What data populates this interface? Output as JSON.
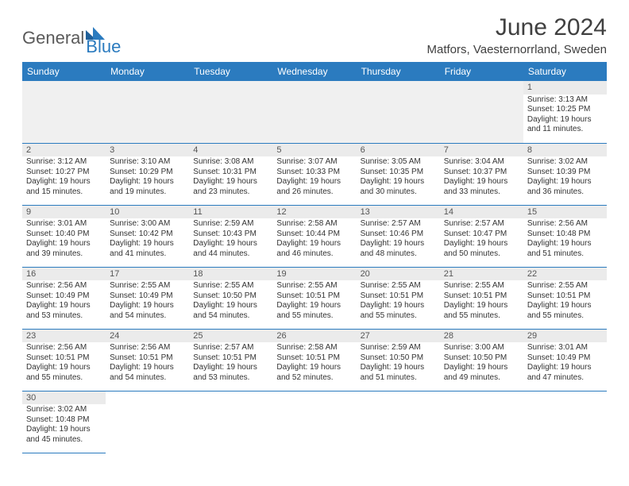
{
  "brand": {
    "part1": "General",
    "part2": "Blue"
  },
  "title": "June 2024",
  "location": "Matfors, Vaesternorrland, Sweden",
  "header_bg": "#2b7bbf",
  "header_text_color": "#ffffff",
  "divider_color": "#2b7bbf",
  "daynum_bg": "#ebebeb",
  "weekdays": [
    "Sunday",
    "Monday",
    "Tuesday",
    "Wednesday",
    "Thursday",
    "Friday",
    "Saturday"
  ],
  "weeks": [
    [
      null,
      null,
      null,
      null,
      null,
      null,
      {
        "n": "1",
        "sr": "Sunrise: 3:13 AM",
        "ss": "Sunset: 10:25 PM",
        "d1": "Daylight: 19 hours",
        "d2": "and 11 minutes."
      }
    ],
    [
      {
        "n": "2",
        "sr": "Sunrise: 3:12 AM",
        "ss": "Sunset: 10:27 PM",
        "d1": "Daylight: 19 hours",
        "d2": "and 15 minutes."
      },
      {
        "n": "3",
        "sr": "Sunrise: 3:10 AM",
        "ss": "Sunset: 10:29 PM",
        "d1": "Daylight: 19 hours",
        "d2": "and 19 minutes."
      },
      {
        "n": "4",
        "sr": "Sunrise: 3:08 AM",
        "ss": "Sunset: 10:31 PM",
        "d1": "Daylight: 19 hours",
        "d2": "and 23 minutes."
      },
      {
        "n": "5",
        "sr": "Sunrise: 3:07 AM",
        "ss": "Sunset: 10:33 PM",
        "d1": "Daylight: 19 hours",
        "d2": "and 26 minutes."
      },
      {
        "n": "6",
        "sr": "Sunrise: 3:05 AM",
        "ss": "Sunset: 10:35 PM",
        "d1": "Daylight: 19 hours",
        "d2": "and 30 minutes."
      },
      {
        "n": "7",
        "sr": "Sunrise: 3:04 AM",
        "ss": "Sunset: 10:37 PM",
        "d1": "Daylight: 19 hours",
        "d2": "and 33 minutes."
      },
      {
        "n": "8",
        "sr": "Sunrise: 3:02 AM",
        "ss": "Sunset: 10:39 PM",
        "d1": "Daylight: 19 hours",
        "d2": "and 36 minutes."
      }
    ],
    [
      {
        "n": "9",
        "sr": "Sunrise: 3:01 AM",
        "ss": "Sunset: 10:40 PM",
        "d1": "Daylight: 19 hours",
        "d2": "and 39 minutes."
      },
      {
        "n": "10",
        "sr": "Sunrise: 3:00 AM",
        "ss": "Sunset: 10:42 PM",
        "d1": "Daylight: 19 hours",
        "d2": "and 41 minutes."
      },
      {
        "n": "11",
        "sr": "Sunrise: 2:59 AM",
        "ss": "Sunset: 10:43 PM",
        "d1": "Daylight: 19 hours",
        "d2": "and 44 minutes."
      },
      {
        "n": "12",
        "sr": "Sunrise: 2:58 AM",
        "ss": "Sunset: 10:44 PM",
        "d1": "Daylight: 19 hours",
        "d2": "and 46 minutes."
      },
      {
        "n": "13",
        "sr": "Sunrise: 2:57 AM",
        "ss": "Sunset: 10:46 PM",
        "d1": "Daylight: 19 hours",
        "d2": "and 48 minutes."
      },
      {
        "n": "14",
        "sr": "Sunrise: 2:57 AM",
        "ss": "Sunset: 10:47 PM",
        "d1": "Daylight: 19 hours",
        "d2": "and 50 minutes."
      },
      {
        "n": "15",
        "sr": "Sunrise: 2:56 AM",
        "ss": "Sunset: 10:48 PM",
        "d1": "Daylight: 19 hours",
        "d2": "and 51 minutes."
      }
    ],
    [
      {
        "n": "16",
        "sr": "Sunrise: 2:56 AM",
        "ss": "Sunset: 10:49 PM",
        "d1": "Daylight: 19 hours",
        "d2": "and 53 minutes."
      },
      {
        "n": "17",
        "sr": "Sunrise: 2:55 AM",
        "ss": "Sunset: 10:49 PM",
        "d1": "Daylight: 19 hours",
        "d2": "and 54 minutes."
      },
      {
        "n": "18",
        "sr": "Sunrise: 2:55 AM",
        "ss": "Sunset: 10:50 PM",
        "d1": "Daylight: 19 hours",
        "d2": "and 54 minutes."
      },
      {
        "n": "19",
        "sr": "Sunrise: 2:55 AM",
        "ss": "Sunset: 10:51 PM",
        "d1": "Daylight: 19 hours",
        "d2": "and 55 minutes."
      },
      {
        "n": "20",
        "sr": "Sunrise: 2:55 AM",
        "ss": "Sunset: 10:51 PM",
        "d1": "Daylight: 19 hours",
        "d2": "and 55 minutes."
      },
      {
        "n": "21",
        "sr": "Sunrise: 2:55 AM",
        "ss": "Sunset: 10:51 PM",
        "d1": "Daylight: 19 hours",
        "d2": "and 55 minutes."
      },
      {
        "n": "22",
        "sr": "Sunrise: 2:55 AM",
        "ss": "Sunset: 10:51 PM",
        "d1": "Daylight: 19 hours",
        "d2": "and 55 minutes."
      }
    ],
    [
      {
        "n": "23",
        "sr": "Sunrise: 2:56 AM",
        "ss": "Sunset: 10:51 PM",
        "d1": "Daylight: 19 hours",
        "d2": "and 55 minutes."
      },
      {
        "n": "24",
        "sr": "Sunrise: 2:56 AM",
        "ss": "Sunset: 10:51 PM",
        "d1": "Daylight: 19 hours",
        "d2": "and 54 minutes."
      },
      {
        "n": "25",
        "sr": "Sunrise: 2:57 AM",
        "ss": "Sunset: 10:51 PM",
        "d1": "Daylight: 19 hours",
        "d2": "and 53 minutes."
      },
      {
        "n": "26",
        "sr": "Sunrise: 2:58 AM",
        "ss": "Sunset: 10:51 PM",
        "d1": "Daylight: 19 hours",
        "d2": "and 52 minutes."
      },
      {
        "n": "27",
        "sr": "Sunrise: 2:59 AM",
        "ss": "Sunset: 10:50 PM",
        "d1": "Daylight: 19 hours",
        "d2": "and 51 minutes."
      },
      {
        "n": "28",
        "sr": "Sunrise: 3:00 AM",
        "ss": "Sunset: 10:50 PM",
        "d1": "Daylight: 19 hours",
        "d2": "and 49 minutes."
      },
      {
        "n": "29",
        "sr": "Sunrise: 3:01 AM",
        "ss": "Sunset: 10:49 PM",
        "d1": "Daylight: 19 hours",
        "d2": "and 47 minutes."
      }
    ],
    [
      {
        "n": "30",
        "sr": "Sunrise: 3:02 AM",
        "ss": "Sunset: 10:48 PM",
        "d1": "Daylight: 19 hours",
        "d2": "and 45 minutes."
      },
      null,
      null,
      null,
      null,
      null,
      null
    ]
  ]
}
